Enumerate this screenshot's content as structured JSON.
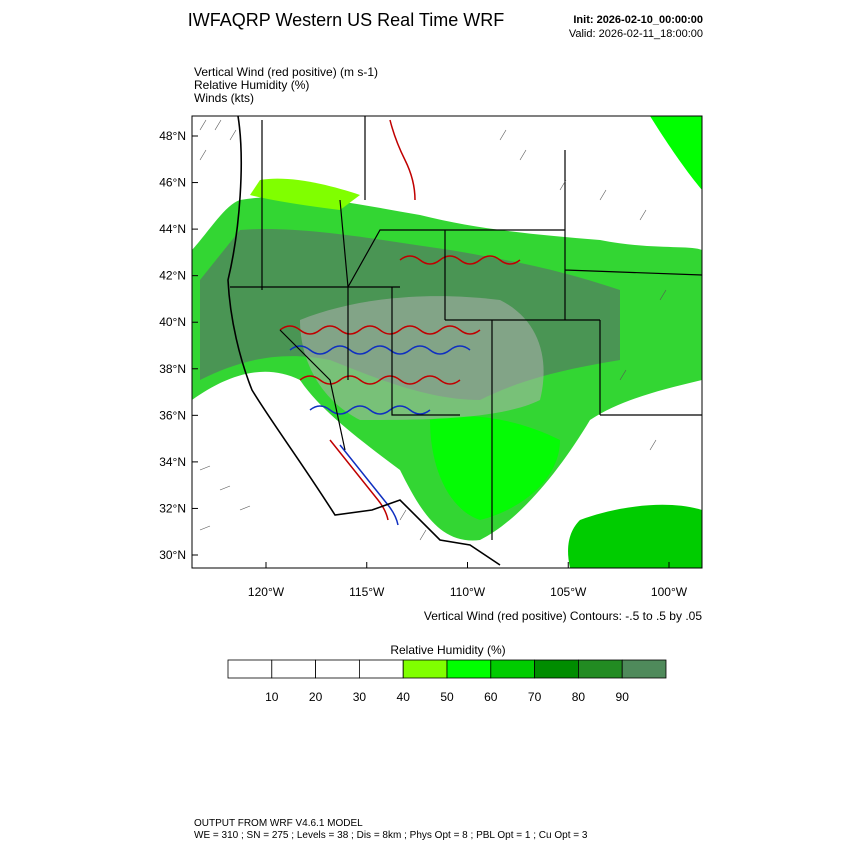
{
  "header": {
    "title": "IWFAQRP Western US Real Time WRF",
    "init": "Init: 2026-02-10_00:00:00",
    "valid": "Valid: 2026-02-11_18:00:00"
  },
  "fields": [
    "Vertical Wind (red positive)   (m s-1)",
    "Relative Humidity   (%)",
    "Winds   (kts)"
  ],
  "map": {
    "lat_labels": [
      "48°N",
      "46°N",
      "44°N",
      "42°N",
      "40°N",
      "38°N",
      "36°N",
      "34°N",
      "32°N",
      "30°N"
    ],
    "lon_labels": [
      "120°W",
      "115°W",
      "110°W",
      "105°W",
      "100°W"
    ],
    "contour_note": "Vertical Wind (red positive) Contours: -.5 to .5 by .05"
  },
  "colorbar": {
    "title": "Relative Humidity  (%)",
    "labels": [
      "10",
      "20",
      "30",
      "40",
      "50",
      "60",
      "70",
      "80",
      "90"
    ],
    "colors": [
      "#ffffff",
      "#ffffff",
      "#ffffff",
      "#ffffff",
      "#80ff00",
      "#00ff00",
      "#00cc00",
      "#008c00",
      "#228b22",
      "#4f8a5b"
    ]
  },
  "footer": {
    "line1": "OUTPUT FROM WRF V4.6.1 MODEL",
    "line2": "WE = 310 ; SN = 275 ; Levels = 38 ; Dis = 8km ; Phys Opt = 8 ; PBL Opt = 1 ; Cu Opt = 3"
  }
}
